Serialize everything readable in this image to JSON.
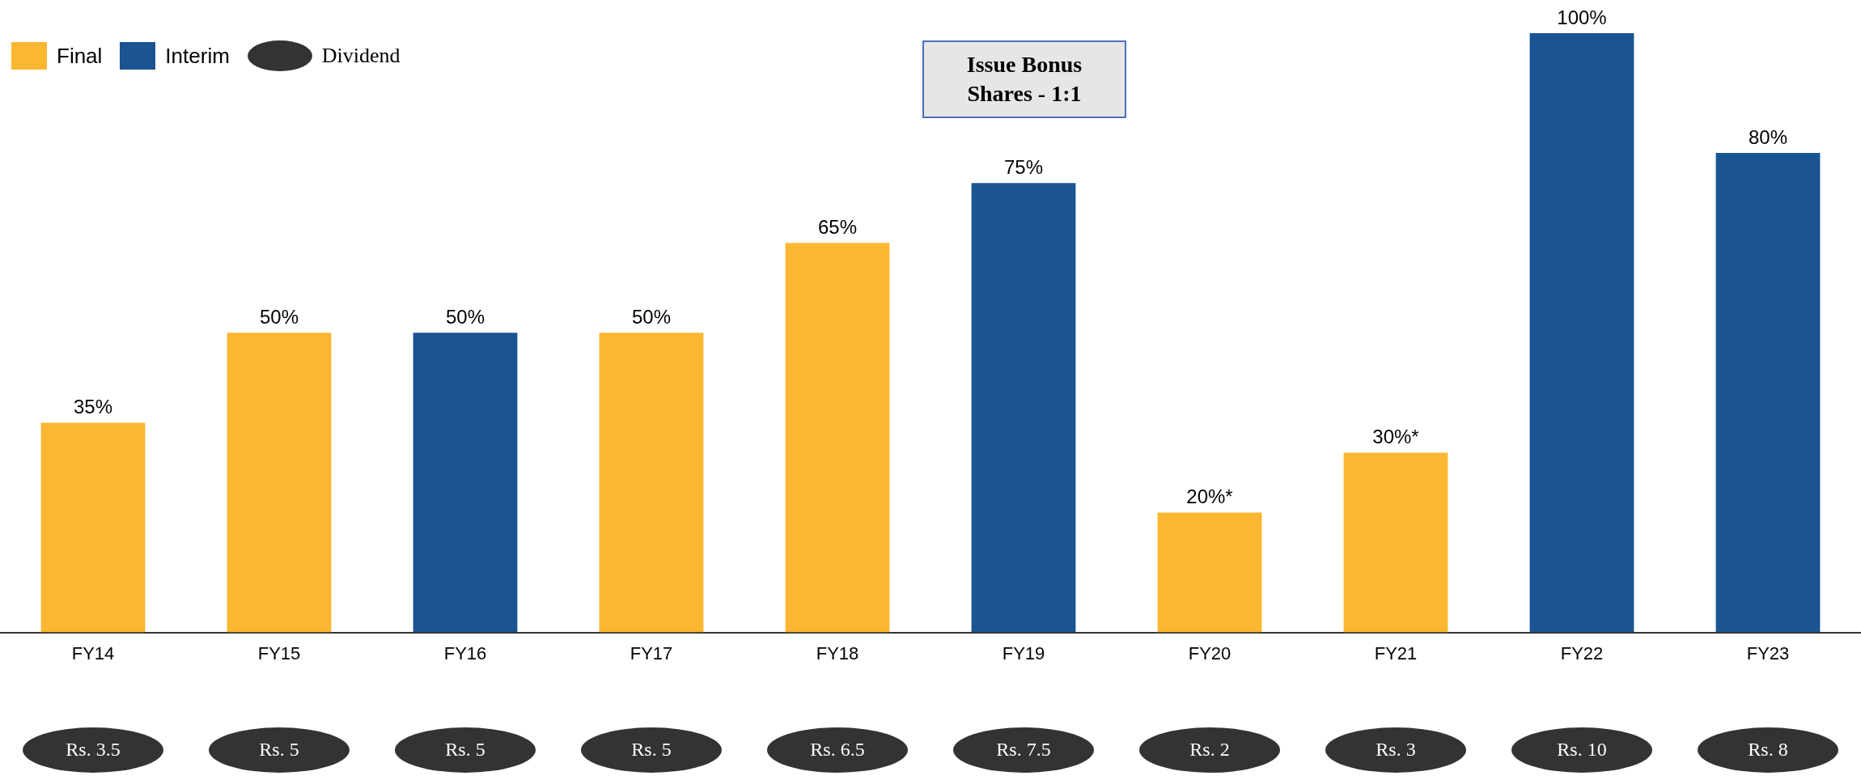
{
  "chart_data": {
    "type": "bar",
    "categories": [
      "FY14",
      "FY15",
      "FY16",
      "FY17",
      "FY18",
      "FY19",
      "FY20",
      "FY21",
      "FY22",
      "FY23"
    ],
    "series": [
      {
        "name": "Final",
        "color": "#fbb731",
        "values": [
          35,
          50,
          null,
          50,
          65,
          null,
          20,
          30,
          null,
          null
        ],
        "value_labels": [
          "35%",
          "50%",
          null,
          "50%",
          "65%",
          null,
          "20%*",
          "30%*",
          null,
          null
        ]
      },
      {
        "name": "Interim",
        "color": "#1a5493",
        "values": [
          null,
          null,
          50,
          null,
          null,
          75,
          null,
          null,
          100,
          80
        ],
        "value_labels": [
          null,
          null,
          "50%",
          null,
          null,
          "75%",
          null,
          null,
          "100%",
          "80%"
        ]
      },
      {
        "name": "Dividend",
        "type": "other",
        "color": "#333333",
        "values": [
          null,
          null,
          null,
          null,
          null,
          null,
          null,
          null,
          null,
          null
        ]
      }
    ],
    "ylim": [
      0,
      100
    ],
    "grid": false,
    "legend": "top left",
    "annotations": [
      "Issue Bonus Shares - 1:1",
      "Rs. 3.5",
      "Rs. 5",
      "Rs. 5",
      "Rs. 5",
      "Rs. 6.5",
      "Rs. 7.5",
      "Rs. 2",
      "Rs. 3",
      "Rs. 10",
      "Rs. 8"
    ]
  }
}
